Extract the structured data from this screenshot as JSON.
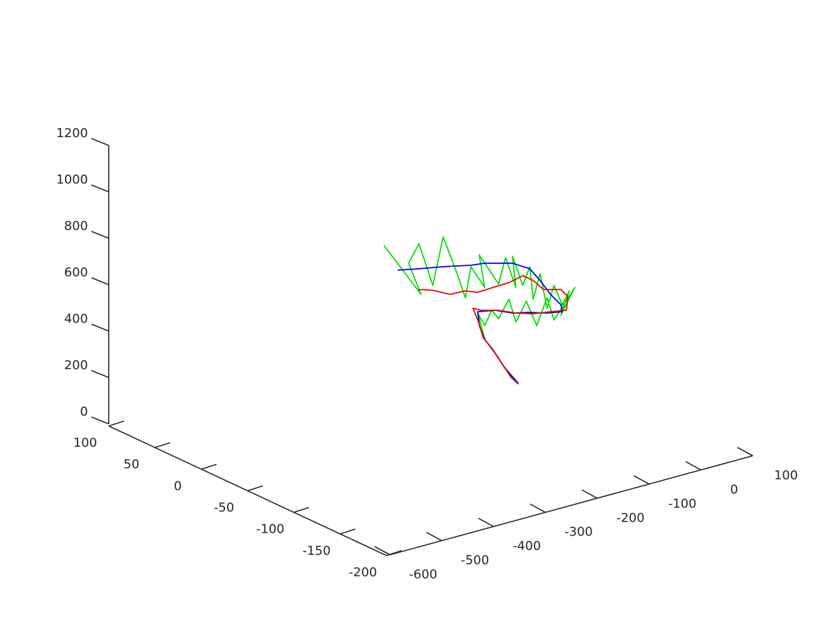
{
  "chart_data": {
    "type": "line",
    "title": "",
    "xlabel": "",
    "ylabel": "",
    "zlabel": "",
    "grid": false,
    "legend": "none",
    "axes": {
      "x": {
        "ticks": [
          "-600",
          "-500",
          "-400",
          "-300",
          "-200",
          "-100",
          "0",
          "100"
        ],
        "range": [
          -600,
          100
        ]
      },
      "y": {
        "ticks": [
          "-200",
          "-150",
          "-100",
          "-50",
          "0",
          "50",
          "100"
        ],
        "range": [
          -200,
          100
        ]
      },
      "z": {
        "ticks": [
          "0",
          "200",
          "400",
          "600",
          "800",
          "1000",
          "1200"
        ],
        "range": [
          0,
          1200
        ]
      }
    },
    "series": [
      {
        "color": "#00dd00",
        "style": "zigzag",
        "points": [
          [
            555,
            355
          ],
          [
            580,
            388
          ],
          [
            608,
            425
          ],
          [
            590,
            380
          ],
          [
            605,
            352
          ],
          [
            625,
            412
          ],
          [
            640,
            342
          ],
          [
            660,
            395
          ],
          [
            672,
            430
          ],
          [
            680,
            385
          ],
          [
            700,
            415
          ],
          [
            692,
            368
          ],
          [
            720,
            410
          ],
          [
            730,
            372
          ],
          [
            745,
            415
          ],
          [
            740,
            370
          ],
          [
            755,
            412
          ],
          [
            765,
            385
          ],
          [
            770,
            432
          ],
          [
            780,
            395
          ],
          [
            790,
            445
          ],
          [
            800,
            412
          ],
          [
            812,
            440
          ],
          [
            822,
            420
          ],
          [
            810,
            455
          ],
          [
            830,
            415
          ],
          [
            800,
            462
          ],
          [
            790,
            430
          ],
          [
            775,
            470
          ],
          [
            760,
            435
          ],
          [
            745,
            465
          ],
          [
            735,
            432
          ],
          [
            720,
            460
          ],
          [
            710,
            448
          ],
          [
            700,
            470
          ],
          [
            690,
            452
          ],
          [
            700,
            490
          ],
          [
            712,
            505
          ],
          [
            725,
            525
          ],
          [
            740,
            545
          ]
        ]
      },
      {
        "color": "#0000ee",
        "style": "smooth",
        "points": [
          [
            575,
            390
          ],
          [
            605,
            388
          ],
          [
            640,
            385
          ],
          [
            680,
            383
          ],
          [
            700,
            380
          ],
          [
            740,
            380
          ],
          [
            765,
            388
          ],
          [
            780,
            405
          ],
          [
            795,
            425
          ],
          [
            810,
            440
          ],
          [
            812,
            450
          ],
          [
            790,
            452
          ],
          [
            765,
            451
          ],
          [
            740,
            452
          ],
          [
            715,
            448
          ],
          [
            690,
            450
          ],
          [
            692,
            470
          ],
          [
            700,
            490
          ],
          [
            715,
            510
          ],
          [
            728,
            530
          ],
          [
            748,
            553
          ]
        ]
      },
      {
        "color": "#ee0000",
        "style": "smooth",
        "points": [
          [
            605,
            418
          ],
          [
            625,
            419
          ],
          [
            650,
            425
          ],
          [
            672,
            420
          ],
          [
            690,
            422
          ],
          [
            712,
            415
          ],
          [
            735,
            408
          ],
          [
            755,
            398
          ],
          [
            770,
            405
          ],
          [
            785,
            418
          ],
          [
            810,
            418
          ],
          [
            820,
            428
          ],
          [
            818,
            448
          ],
          [
            795,
            450
          ],
          [
            770,
            453
          ],
          [
            745,
            452
          ],
          [
            720,
            448
          ],
          [
            695,
            448
          ],
          [
            683,
            445
          ],
          [
            690,
            462
          ],
          [
            698,
            488
          ],
          [
            712,
            505
          ],
          [
            725,
            525
          ],
          [
            738,
            545
          ],
          [
            748,
            554
          ]
        ]
      }
    ]
  }
}
